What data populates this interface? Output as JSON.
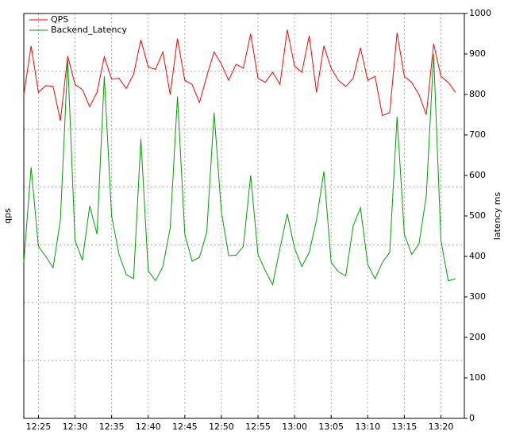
{
  "chart_data": {
    "type": "line",
    "ylabel": "qps",
    "y2label": "latency ms",
    "x": [
      743,
      744,
      745,
      746,
      747,
      748,
      749,
      750,
      751,
      752,
      753,
      754,
      755,
      756,
      757,
      758,
      759,
      760,
      761,
      762,
      763,
      764,
      765,
      766,
      767,
      768,
      769,
      770,
      771,
      772,
      773,
      774,
      775,
      776,
      777,
      778,
      779,
      780,
      781,
      782,
      783,
      784,
      785,
      786,
      787,
      788,
      789,
      790,
      791,
      792,
      793,
      794,
      795,
      796,
      797,
      798,
      799,
      800,
      801,
      802
    ],
    "xlim": [
      743,
      803.2
    ],
    "xticks": [
      {
        "value": 745,
        "label": "12:25"
      },
      {
        "value": 750,
        "label": "12:30"
      },
      {
        "value": 755,
        "label": "12:35"
      },
      {
        "value": 760,
        "label": "12:40"
      },
      {
        "value": 765,
        "label": "12:45"
      },
      {
        "value": 770,
        "label": "12:50"
      },
      {
        "value": 775,
        "label": "12:55"
      },
      {
        "value": 780,
        "label": "13:00"
      },
      {
        "value": 785,
        "label": "13:05"
      },
      {
        "value": 790,
        "label": "13:10"
      },
      {
        "value": 795,
        "label": "13:15"
      },
      {
        "value": 800,
        "label": "13:20"
      }
    ],
    "y2lim": [
      0,
      1000
    ],
    "y2ticks": [
      0,
      100,
      200,
      300,
      400,
      500,
      600,
      700,
      800,
      900,
      1000
    ],
    "grid": true,
    "legend": "upper-left",
    "series": [
      {
        "name": "QPS",
        "color": "#ff0000",
        "axis": "y2",
        "values": [
          800,
          920,
          805,
          822,
          820,
          735,
          895,
          825,
          812,
          770,
          805,
          893,
          838,
          840,
          815,
          850,
          935,
          868,
          862,
          905,
          800,
          938,
          835,
          825,
          780,
          845,
          905,
          875,
          835,
          875,
          865,
          950,
          840,
          830,
          855,
          825,
          960,
          870,
          855,
          945,
          805,
          920,
          865,
          835,
          820,
          840,
          915,
          835,
          845,
          748,
          755,
          952,
          845,
          830,
          800,
          750,
          925,
          845,
          830,
          805
        ]
      },
      {
        "name": "Backend_Latency",
        "color": "#00a000",
        "axis": "y2",
        "values": [
          385,
          620,
          425,
          400,
          372,
          490,
          885,
          440,
          390,
          525,
          455,
          845,
          500,
          405,
          355,
          345,
          690,
          365,
          340,
          375,
          470,
          795,
          455,
          388,
          398,
          460,
          755,
          510,
          402,
          403,
          425,
          600,
          405,
          365,
          330,
          420,
          505,
          420,
          375,
          410,
          490,
          610,
          385,
          362,
          352,
          475,
          520,
          380,
          345,
          385,
          410,
          745,
          455,
          405,
          430,
          550,
          900,
          440,
          340,
          345
        ]
      }
    ]
  }
}
